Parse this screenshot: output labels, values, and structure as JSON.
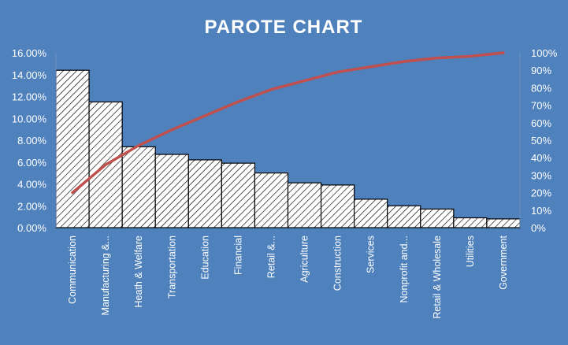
{
  "chart_data": {
    "type": "bar",
    "title": "PAROTE CHART",
    "categories": [
      "Communication",
      "Manufacturing &...",
      "Heath & Welfare",
      "Transportation",
      "Education",
      "Financial",
      "Retail &...",
      "Agriculture",
      "Construction",
      "Services",
      "Nonprofit and...",
      "Retail & Wholesale",
      "Utilities",
      "Government"
    ],
    "series": [
      {
        "type": "bar",
        "values": [
          14.4,
          11.5,
          7.4,
          6.7,
          6.2,
          5.9,
          5.0,
          4.1,
          3.9,
          2.6,
          2.0,
          1.7,
          0.9,
          0.8
        ]
      },
      {
        "type": "line",
        "axis": "right",
        "values": [
          20,
          36,
          47,
          56,
          64,
          72,
          79,
          84,
          89,
          92,
          95,
          97,
          98,
          100
        ]
      }
    ],
    "ylim": [
      0,
      16
    ],
    "y_ticks": [
      "0.00%",
      "2.00%",
      "4.00%",
      "6.00%",
      "8.00%",
      "10.00%",
      "12.00%",
      "14.00%",
      "16.00%"
    ],
    "y2lim": [
      0,
      100
    ],
    "y2_ticks": [
      "0%",
      "10%",
      "20%",
      "30%",
      "40%",
      "50%",
      "60%",
      "70%",
      "80%",
      "90%",
      "100%"
    ],
    "colors": {
      "background": "#4f81bd",
      "bar_fill": "#ffffff",
      "bar_stroke": "#000000",
      "line": "#c0504d",
      "text": "#ffffff"
    },
    "bar_pattern": "diagonal-hatch",
    "grid": false,
    "legend": "none"
  }
}
